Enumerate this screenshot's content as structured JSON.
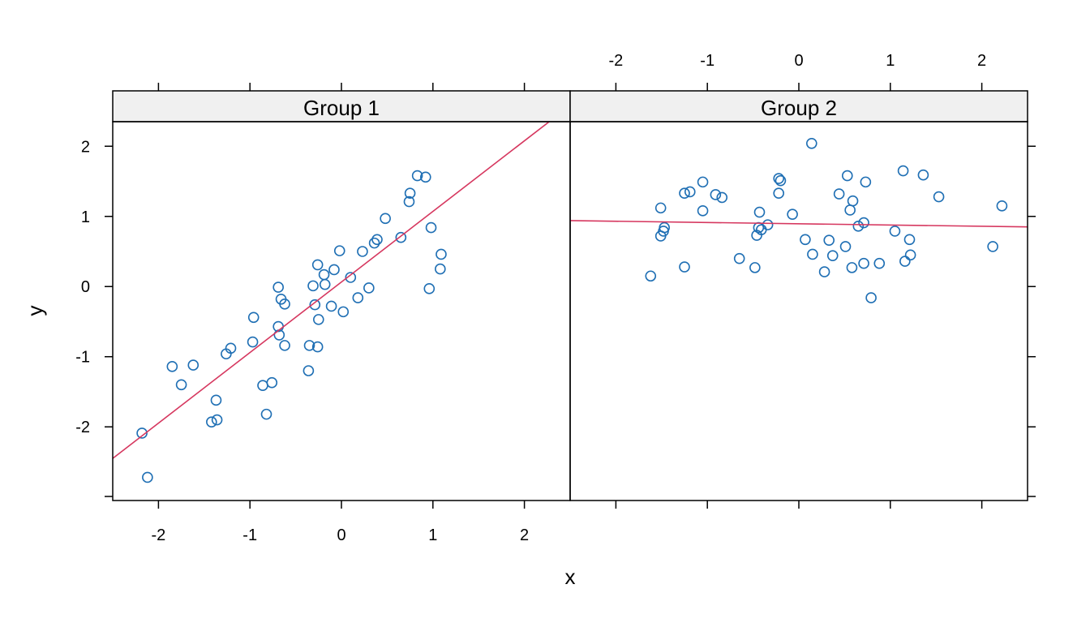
{
  "chart_data": {
    "type": "scatter",
    "layout": "two panels side by side with strip headers, shared axes",
    "xlabel": "x",
    "ylabel": "y",
    "xlim": [
      -2.5,
      2.5
    ],
    "ylim": [
      -3.05,
      2.35
    ],
    "x_ticks": [
      -2,
      -1,
      0,
      1,
      2
    ],
    "y_ticks": [
      -2,
      -1,
      0,
      1,
      2
    ],
    "x_tick_labels": [
      "-2",
      "-1",
      "0",
      "1",
      "2"
    ],
    "y_tick_labels": [
      "-2",
      "-1",
      "0",
      "1",
      "2"
    ],
    "grid": false,
    "colors": {
      "points": "#1f6fb4",
      "fit_line": "#d6375f",
      "strip_background": "#f0f0f0",
      "frame": "#000000"
    },
    "panels": [
      {
        "strip": "Group 1",
        "fit_line": {
          "x": [
            -2.5,
            2.5
          ],
          "y": [
            -2.45,
            2.58
          ]
        },
        "x": [
          -2.18,
          -2.12,
          -1.85,
          -1.75,
          -1.62,
          -1.42,
          -1.37,
          -1.36,
          -1.26,
          -1.21,
          -0.97,
          -0.96,
          -0.86,
          -0.82,
          -0.76,
          -0.69,
          -0.69,
          -0.68,
          -0.66,
          -0.62,
          -0.62,
          -0.35,
          -0.36,
          -0.31,
          -0.29,
          -0.26,
          -0.26,
          -0.25,
          -0.19,
          -0.18,
          -0.11,
          -0.08,
          -0.02,
          0.02,
          0.1,
          0.18,
          0.23,
          0.3,
          0.36,
          0.39,
          0.48,
          0.65,
          0.74,
          0.75,
          0.83,
          0.92,
          0.96,
          0.98,
          1.08,
          1.09
        ],
        "y": [
          -2.09,
          -2.72,
          -1.14,
          -1.4,
          -1.12,
          -1.93,
          -1.62,
          -1.9,
          -0.96,
          -0.88,
          -0.79,
          -0.44,
          -1.41,
          -1.82,
          -1.37,
          -0.01,
          -0.57,
          -0.69,
          -0.18,
          -0.84,
          -0.25,
          -0.84,
          -1.2,
          0.01,
          -0.26,
          0.31,
          -0.86,
          -0.47,
          0.17,
          0.03,
          -0.28,
          0.24,
          0.51,
          -0.36,
          0.13,
          -0.16,
          0.5,
          -0.02,
          0.62,
          0.67,
          0.97,
          0.7,
          1.21,
          1.33,
          1.58,
          1.56,
          -0.03,
          0.84,
          0.25,
          0.46
        ]
      },
      {
        "strip": "Group 2",
        "fit_line": {
          "x": [
            -2.5,
            2.5
          ],
          "y": [
            0.94,
            0.85
          ]
        },
        "x": [
          -1.62,
          -1.51,
          -1.51,
          -1.48,
          -1.47,
          -1.25,
          -1.25,
          -1.19,
          -1.05,
          -1.05,
          -0.91,
          -0.84,
          -0.65,
          -0.48,
          -0.46,
          -0.44,
          -0.43,
          -0.41,
          -0.34,
          -0.22,
          -0.22,
          -0.2,
          -0.07,
          0.07,
          0.14,
          0.15,
          0.28,
          0.33,
          0.37,
          0.44,
          0.51,
          0.53,
          0.56,
          0.58,
          0.59,
          0.65,
          0.71,
          0.71,
          0.73,
          0.79,
          0.88,
          1.05,
          1.14,
          1.16,
          1.21,
          1.22,
          1.36,
          1.53,
          2.12,
          2.22
        ],
        "y": [
          0.15,
          0.72,
          1.12,
          0.79,
          0.84,
          0.28,
          1.33,
          1.35,
          1.49,
          1.08,
          1.31,
          1.27,
          0.4,
          0.27,
          0.73,
          0.84,
          1.06,
          0.81,
          0.88,
          1.33,
          1.54,
          1.51,
          1.03,
          0.67,
          2.04,
          0.46,
          0.21,
          0.66,
          0.44,
          1.32,
          0.57,
          1.58,
          1.09,
          0.27,
          1.22,
          0.86,
          0.91,
          0.33,
          1.49,
          -0.16,
          0.33,
          0.79,
          1.65,
          0.36,
          0.67,
          0.45,
          1.59,
          1.28,
          0.57,
          1.15
        ]
      }
    ]
  }
}
